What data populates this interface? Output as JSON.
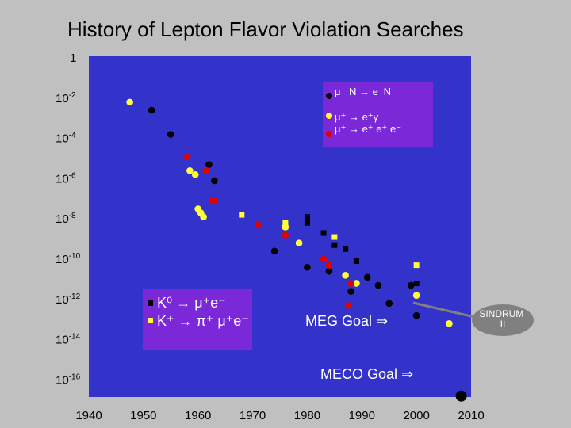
{
  "chart_data": {
    "type": "scatter",
    "title": "History of Lepton Flavor Violation Searches",
    "x_ticks": [
      "1940",
      "1950",
      "1960",
      "1970",
      "1980",
      "1990",
      "2000",
      "2010"
    ],
    "y_ticks": [
      {
        "base": "1",
        "exp": ""
      },
      {
        "base": "10",
        "exp": "-2"
      },
      {
        "base": "10",
        "exp": "-4"
      },
      {
        "base": "10",
        "exp": "-6"
      },
      {
        "base": "10",
        "exp": "-8"
      },
      {
        "base": "10",
        "exp": "-10"
      },
      {
        "base": "10",
        "exp": "-12"
      },
      {
        "base": "10",
        "exp": "-14"
      },
      {
        "base": "10",
        "exp": "-16"
      }
    ],
    "xlim": [
      1940,
      2010
    ],
    "ylim_log10": [
      -17,
      0
    ],
    "colors": {
      "background": "#c0c0c0",
      "plot": "#3333cc",
      "legend_box": "#7a28d8",
      "mu_e_conversion": "#000000",
      "mu_e_gamma": "#ffff33",
      "mu_3e": "#e00000",
      "kaon_black": "#000000",
      "kaon_yellow": "#ffff33"
    },
    "series": [
      {
        "name": "mu_e_conversion",
        "marker": "circle",
        "color": "#000000",
        "points": [
          [
            1951.5,
            -2.6
          ],
          [
            1955,
            -3.8
          ],
          [
            1962,
            -5.3
          ],
          [
            1963,
            -6.1
          ],
          [
            1974,
            -9.6
          ],
          [
            1980,
            -10.4
          ],
          [
            1984,
            -10.6
          ],
          [
            1988,
            -11.6
          ],
          [
            1991,
            -10.9
          ],
          [
            1993,
            -11.3
          ],
          [
            1995,
            -12.2
          ],
          [
            1999,
            -11.3
          ],
          [
            2000,
            -12.8
          ],
          [
            2008.2,
            -16.8
          ]
        ]
      },
      {
        "name": "mu_e_gamma",
        "marker": "circle",
        "color": "#ffff33",
        "points": [
          [
            1947.5,
            -2.2
          ],
          [
            1958.5,
            -5.6
          ],
          [
            1959.5,
            -5.8
          ],
          [
            1960,
            -7.5
          ],
          [
            1960.5,
            -7.7
          ],
          [
            1961,
            -7.9
          ],
          [
            1976,
            -8.4
          ],
          [
            1978.5,
            -9.2
          ],
          [
            1987,
            -10.8
          ],
          [
            1989,
            -11.2
          ],
          [
            2000,
            -11.8
          ],
          [
            2006,
            -13.2
          ]
        ]
      },
      {
        "name": "mu_3e",
        "marker": "circle",
        "color": "#e00000",
        "points": [
          [
            1958,
            -4.9
          ],
          [
            1961.5,
            -5.6
          ],
          [
            1962.5,
            -7.1
          ],
          [
            1963,
            -7.1
          ],
          [
            1971,
            -8.3
          ],
          [
            1976,
            -8.8
          ],
          [
            1983,
            -10.0
          ],
          [
            1984,
            -10.3
          ],
          [
            1987.5,
            -12.3
          ],
          [
            1988,
            -11.2
          ]
        ]
      },
      {
        "name": "kaon_black",
        "marker": "square",
        "color": "#000000",
        "points": [
          [
            1980,
            -7.9
          ],
          [
            1980,
            -8.2
          ],
          [
            1983,
            -8.7
          ],
          [
            1985,
            -9.3
          ],
          [
            1987,
            -9.5
          ],
          [
            1989,
            -10.1
          ],
          [
            2000,
            -11.2
          ]
        ]
      },
      {
        "name": "kaon_yellow",
        "marker": "square",
        "color": "#ffff33",
        "points": [
          [
            1968,
            -7.8
          ],
          [
            1976,
            -8.2
          ],
          [
            1976,
            -8.4
          ],
          [
            1985,
            -8.9
          ],
          [
            2000,
            -10.3
          ]
        ]
      }
    ],
    "legend_upper": {
      "mu_e_conversion": "μ⁻ N → e⁻N",
      "mu_e_gamma": "μ⁺ → e⁺γ",
      "mu_3e": "μ⁺ → e⁺ e⁺ e⁻"
    },
    "legend_lower": {
      "k0": "K⁰ → μ⁺e⁻",
      "kplus": "K⁺ → π⁺ μ⁺e⁻"
    },
    "annotations": {
      "meg_goal": "MEG Goal ⇒",
      "meco_goal": "MECO Goal ⇒",
      "sindrum": "SINDRUM II"
    }
  }
}
